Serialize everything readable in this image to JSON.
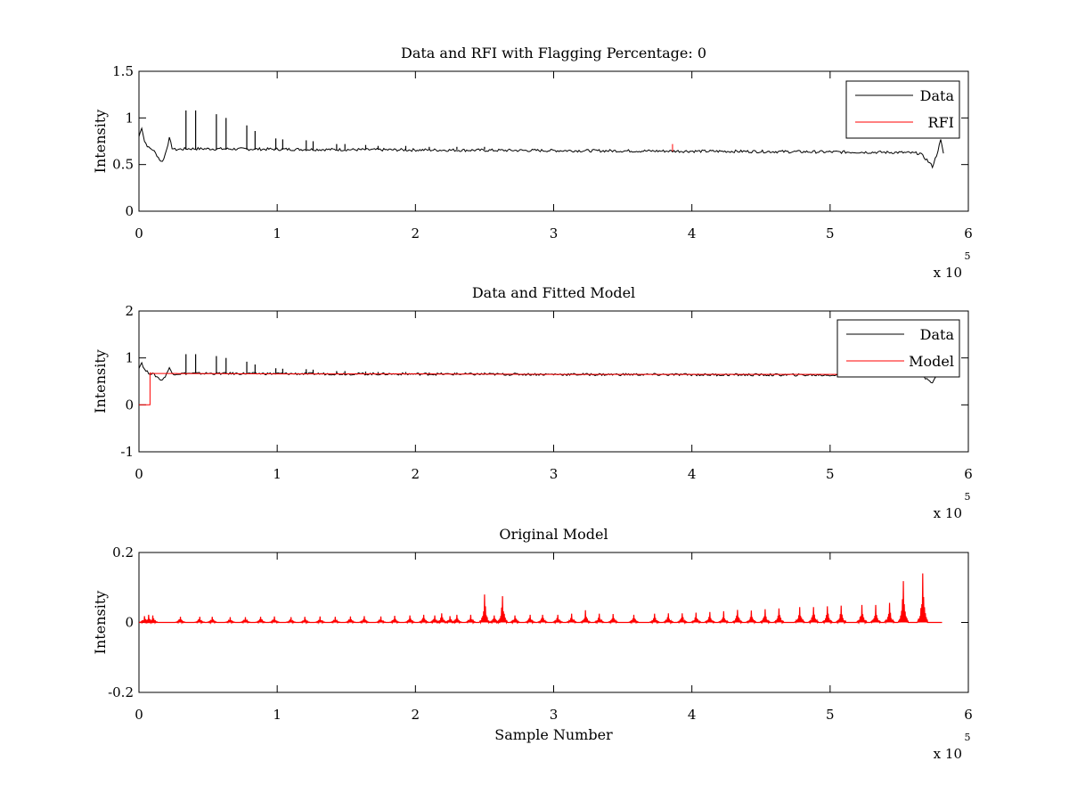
{
  "chart_data": [
    {
      "type": "line",
      "title": "Data and RFI with Flagging Percentage: 0",
      "xlabel": "",
      "ylabel": "Intensity",
      "xlim": [
        0,
        6
      ],
      "ylim": [
        0,
        1.5
      ],
      "xticks": [
        "0",
        "1",
        "2",
        "3",
        "4",
        "5",
        "6"
      ],
      "yticks": [
        "0",
        "0.5",
        "1",
        "1.5"
      ],
      "x_multiplier": {
        "base": "x 10",
        "exponent": "5"
      },
      "legend": {
        "position": "top-right",
        "entries": [
          "Data",
          "RFI"
        ]
      },
      "series": [
        {
          "name": "Data",
          "color": "#000000",
          "baseline": 0.66,
          "x": [
            0,
            0.02,
            0.04,
            0.07,
            0.1,
            0.13,
            0.16,
            0.18,
            0.2,
            0.22,
            0.24,
            0.26,
            0.35,
            1.5,
            3,
            4.5,
            5.5,
            5.65,
            5.7,
            5.74,
            5.77,
            5.8,
            5.82
          ],
          "y": [
            0.8,
            0.9,
            0.75,
            0.68,
            0.66,
            0.6,
            0.53,
            0.56,
            0.67,
            0.78,
            0.68,
            0.66,
            0.67,
            0.66,
            0.65,
            0.64,
            0.63,
            0.62,
            0.55,
            0.48,
            0.6,
            0.76,
            0.62
          ],
          "spikes": [
            {
              "x": 0.34,
              "y": 1.08
            },
            {
              "x": 0.41,
              "y": 1.08
            },
            {
              "x": 0.56,
              "y": 1.04
            },
            {
              "x": 0.63,
              "y": 1.0
            },
            {
              "x": 0.78,
              "y": 0.92
            },
            {
              "x": 0.84,
              "y": 0.86
            },
            {
              "x": 0.99,
              "y": 0.78
            },
            {
              "x": 1.04,
              "y": 0.77
            },
            {
              "x": 1.21,
              "y": 0.76
            },
            {
              "x": 1.26,
              "y": 0.75
            },
            {
              "x": 1.43,
              "y": 0.72
            },
            {
              "x": 1.49,
              "y": 0.72
            },
            {
              "x": 1.64,
              "y": 0.71
            },
            {
              "x": 1.73,
              "y": 0.7
            },
            {
              "x": 1.93,
              "y": 0.7
            },
            {
              "x": 2.1,
              "y": 0.69
            },
            {
              "x": 2.3,
              "y": 0.69
            },
            {
              "x": 2.5,
              "y": 0.69
            }
          ]
        },
        {
          "name": "RFI",
          "color": "#ff0000",
          "x": [
            3.86
          ],
          "y": [
            0.72
          ]
        }
      ]
    },
    {
      "type": "line",
      "title": "Data and Fitted Model",
      "xlabel": "",
      "ylabel": "Intensity",
      "xlim": [
        0,
        6
      ],
      "ylim": [
        -1,
        2
      ],
      "xticks": [
        "0",
        "1",
        "2",
        "3",
        "4",
        "5",
        "6"
      ],
      "yticks": [
        "-1",
        "0",
        "1",
        "2"
      ],
      "x_multiplier": {
        "base": "x 10",
        "exponent": "5"
      },
      "legend": {
        "position": "top-right",
        "entries": [
          "Data",
          "Model"
        ]
      },
      "series": [
        {
          "name": "Data",
          "color": "#000000",
          "x": [
            0,
            0.02,
            0.04,
            0.07,
            0.1,
            0.13,
            0.16,
            0.18,
            0.2,
            0.22,
            0.24,
            0.26,
            0.35,
            1.5,
            3,
            4.5,
            5.5,
            5.65,
            5.7,
            5.74,
            5.77,
            5.8,
            5.82
          ],
          "y": [
            0.8,
            0.9,
            0.75,
            0.68,
            0.66,
            0.6,
            0.53,
            0.56,
            0.67,
            0.78,
            0.68,
            0.66,
            0.67,
            0.66,
            0.65,
            0.64,
            0.63,
            0.62,
            0.55,
            0.48,
            0.6,
            0.76,
            0.62
          ],
          "spikes": [
            {
              "x": 0.34,
              "y": 1.08
            },
            {
              "x": 0.41,
              "y": 1.08
            },
            {
              "x": 0.56,
              "y": 1.04
            },
            {
              "x": 0.63,
              "y": 1.0
            },
            {
              "x": 0.78,
              "y": 0.92
            },
            {
              "x": 0.84,
              "y": 0.86
            },
            {
              "x": 0.99,
              "y": 0.78
            },
            {
              "x": 1.04,
              "y": 0.77
            },
            {
              "x": 1.21,
              "y": 0.76
            },
            {
              "x": 1.26,
              "y": 0.75
            },
            {
              "x": 1.43,
              "y": 0.72
            },
            {
              "x": 1.49,
              "y": 0.72
            },
            {
              "x": 1.64,
              "y": 0.71
            },
            {
              "x": 1.73,
              "y": 0.7
            },
            {
              "x": 1.93,
              "y": 0.7
            },
            {
              "x": 2.1,
              "y": 0.69
            },
            {
              "x": 2.3,
              "y": 0.69
            },
            {
              "x": 2.5,
              "y": 0.69
            }
          ]
        },
        {
          "name": "Model",
          "color": "#ff0000",
          "x": [
            0,
            0.08,
            0.08,
            0.09,
            0.1,
            1.0,
            2.0,
            3.0,
            4.0,
            5.0,
            5.5
          ],
          "y": [
            0.0,
            0.0,
            0.68,
            0.67,
            0.67,
            0.66,
            0.66,
            0.65,
            0.65,
            0.65,
            0.65
          ]
        }
      ]
    },
    {
      "type": "line",
      "title": "Original Model",
      "xlabel": "Sample Number",
      "ylabel": "Intensity",
      "xlim": [
        0,
        6
      ],
      "ylim": [
        -0.2,
        0.2
      ],
      "xticks": [
        "0",
        "1",
        "2",
        "3",
        "4",
        "5",
        "6"
      ],
      "yticks": [
        "-0.2",
        "0",
        "0.2"
      ],
      "x_multiplier": {
        "base": "x 10",
        "exponent": "5"
      },
      "series": [
        {
          "name": "",
          "color": "#ff0000",
          "baseline": 0.0,
          "xrange": [
            0.02,
            5.81
          ],
          "peaks": [
            {
              "x": 0.04,
              "y": 0.018
            },
            {
              "x": 0.07,
              "y": 0.022
            },
            {
              "x": 0.1,
              "y": 0.02
            },
            {
              "x": 0.3,
              "y": 0.016
            },
            {
              "x": 0.44,
              "y": 0.016
            },
            {
              "x": 0.53,
              "y": 0.016
            },
            {
              "x": 0.66,
              "y": 0.015
            },
            {
              "x": 0.77,
              "y": 0.015
            },
            {
              "x": 0.88,
              "y": 0.016
            },
            {
              "x": 0.98,
              "y": 0.017
            },
            {
              "x": 1.1,
              "y": 0.015
            },
            {
              "x": 1.2,
              "y": 0.016
            },
            {
              "x": 1.31,
              "y": 0.017
            },
            {
              "x": 1.42,
              "y": 0.016
            },
            {
              "x": 1.53,
              "y": 0.017
            },
            {
              "x": 1.63,
              "y": 0.018
            },
            {
              "x": 1.75,
              "y": 0.017
            },
            {
              "x": 1.85,
              "y": 0.019
            },
            {
              "x": 1.96,
              "y": 0.02
            },
            {
              "x": 2.06,
              "y": 0.022
            },
            {
              "x": 2.14,
              "y": 0.02
            },
            {
              "x": 2.19,
              "y": 0.026
            },
            {
              "x": 2.25,
              "y": 0.018
            },
            {
              "x": 2.3,
              "y": 0.022
            },
            {
              "x": 2.4,
              "y": 0.022
            },
            {
              "x": 2.5,
              "y": 0.08
            },
            {
              "x": 2.57,
              "y": 0.02
            },
            {
              "x": 2.63,
              "y": 0.075
            },
            {
              "x": 2.72,
              "y": 0.02
            },
            {
              "x": 2.83,
              "y": 0.022
            },
            {
              "x": 2.92,
              "y": 0.022
            },
            {
              "x": 3.03,
              "y": 0.022
            },
            {
              "x": 3.13,
              "y": 0.025
            },
            {
              "x": 3.23,
              "y": 0.035
            },
            {
              "x": 3.33,
              "y": 0.025
            },
            {
              "x": 3.43,
              "y": 0.024
            },
            {
              "x": 3.58,
              "y": 0.022
            },
            {
              "x": 3.73,
              "y": 0.025
            },
            {
              "x": 3.83,
              "y": 0.026
            },
            {
              "x": 3.93,
              "y": 0.026
            },
            {
              "x": 4.03,
              "y": 0.028
            },
            {
              "x": 4.13,
              "y": 0.03
            },
            {
              "x": 4.23,
              "y": 0.032
            },
            {
              "x": 4.33,
              "y": 0.036
            },
            {
              "x": 4.43,
              "y": 0.034
            },
            {
              "x": 4.53,
              "y": 0.038
            },
            {
              "x": 4.63,
              "y": 0.04
            },
            {
              "x": 4.78,
              "y": 0.044
            },
            {
              "x": 4.88,
              "y": 0.044
            },
            {
              "x": 4.98,
              "y": 0.046
            },
            {
              "x": 5.08,
              "y": 0.048
            },
            {
              "x": 5.23,
              "y": 0.05
            },
            {
              "x": 5.33,
              "y": 0.05
            },
            {
              "x": 5.43,
              "y": 0.056
            },
            {
              "x": 5.53,
              "y": 0.118
            },
            {
              "x": 5.67,
              "y": 0.14
            }
          ]
        }
      ]
    }
  ]
}
